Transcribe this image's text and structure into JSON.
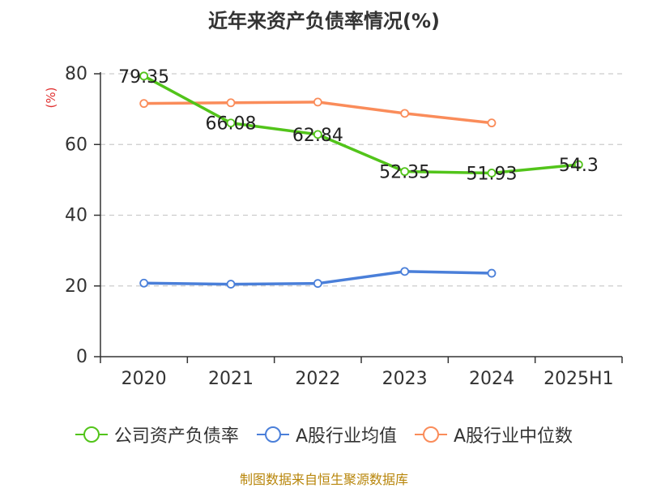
{
  "chart_data": {
    "type": "line",
    "title": "近年来资产负债率情况(%)",
    "ylabel": "(%)",
    "categories": [
      "2020",
      "2021",
      "2022",
      "2023",
      "2024",
      "2025H1"
    ],
    "ylim": [
      0,
      80
    ],
    "yticks": [
      0,
      20,
      40,
      60,
      80
    ],
    "grid": true,
    "legend_position": "bottom",
    "series": [
      {
        "name": "公司资产负债率",
        "color": "#52c41a",
        "show_labels": true,
        "values": [
          79.35,
          66.08,
          62.84,
          52.35,
          51.93,
          54.3
        ],
        "labels": [
          "79.35",
          "66.08",
          "62.84",
          "52.35",
          "51.93",
          "54.3"
        ]
      },
      {
        "name": "A股行业均值",
        "color": "#4a7fd9",
        "show_labels": false,
        "values": [
          20.8,
          20.5,
          20.7,
          24.1,
          23.6,
          null
        ]
      },
      {
        "name": "A股行业中位数",
        "color": "#fa8c5a",
        "show_labels": false,
        "values": [
          71.6,
          71.8,
          72.0,
          68.8,
          66.1,
          null
        ]
      }
    ]
  },
  "source_note": "制图数据来自恒生聚源数据库",
  "colors": {
    "axis": "#333333",
    "grid": "#cccccc",
    "ylabel": "#e03030",
    "source": "#b8860b"
  }
}
